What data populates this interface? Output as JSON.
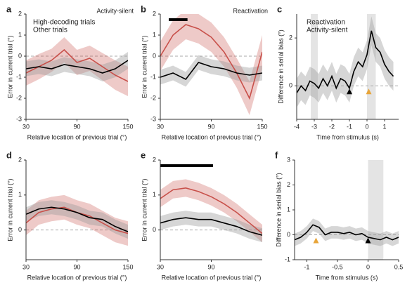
{
  "chart_data": [
    {
      "type": "line",
      "panel": "a",
      "annotation": "Activity-silent",
      "xlabel": "Relative location of previous trial (°)",
      "ylabel": "Error in current trial (°)",
      "xlim": [
        30,
        150
      ],
      "xticks": [
        30,
        90,
        150
      ],
      "ylim": [
        -3,
        2
      ],
      "yticks": [
        -3,
        -2,
        -1,
        0,
        1,
        2
      ],
      "x": [
        30,
        45,
        60,
        75,
        90,
        105,
        120,
        135,
        150
      ],
      "series": [
        {
          "name": "High-decoding trials",
          "color": "#c8504a",
          "values": [
            -0.8,
            -0.5,
            -0.2,
            0.3,
            -0.3,
            -0.1,
            -0.5,
            -0.9,
            -1.2
          ],
          "errors": [
            0.6,
            0.6,
            0.55,
            0.6,
            0.6,
            0.6,
            0.65,
            0.7,
            0.7
          ]
        },
        {
          "name": "Other trials",
          "color": "#000000",
          "values": [
            -0.6,
            -0.5,
            -0.6,
            -0.4,
            -0.5,
            -0.6,
            -0.8,
            -0.6,
            -0.2
          ],
          "errors": [
            0.35,
            0.35,
            0.35,
            0.35,
            0.35,
            0.35,
            0.4,
            0.4,
            0.4
          ]
        }
      ]
    },
    {
      "type": "line",
      "panel": "b",
      "annotation": "Reactivation",
      "xlabel": "Relative location of previous trial (°)",
      "ylabel": "Error in current trial (°)",
      "xlim": [
        30,
        150
      ],
      "xticks": [
        30,
        90,
        150
      ],
      "ylim": [
        -3,
        2
      ],
      "yticks": [
        -3,
        -2,
        -1,
        0,
        1,
        2
      ],
      "x": [
        30,
        45,
        60,
        75,
        90,
        105,
        120,
        135,
        150
      ],
      "significance": [
        40,
        62
      ],
      "series": [
        {
          "color": "#c8504a",
          "values": [
            0.0,
            1.0,
            1.5,
            1.3,
            0.9,
            0.2,
            -0.8,
            -2.0,
            0.2
          ],
          "errors": [
            0.7,
            0.7,
            0.7,
            0.7,
            0.7,
            0.7,
            0.7,
            0.8,
            0.8
          ]
        },
        {
          "color": "#000000",
          "values": [
            -1.0,
            -0.8,
            -1.1,
            -0.3,
            -0.5,
            -0.6,
            -0.8,
            -0.9,
            -0.8
          ],
          "errors": [
            0.35,
            0.35,
            0.35,
            0.35,
            0.35,
            0.35,
            0.35,
            0.35,
            0.35
          ]
        }
      ]
    },
    {
      "type": "line",
      "panel": "c",
      "xlabel": "Time from stimulus (s)",
      "ylabel": "Difference in serial bias (°)",
      "xlim": [
        -4,
        1.8
      ],
      "xticks": [
        -4,
        -3,
        -2,
        -1,
        0,
        1
      ],
      "ylim": [
        -1.4,
        3
      ],
      "yticks": [
        0,
        2
      ],
      "shaded_regions": [
        [
          -3.2,
          -2.8
        ],
        [
          0,
          0.5
        ]
      ],
      "x": [
        -4,
        -3.75,
        -3.5,
        -3.25,
        -3,
        -2.75,
        -2.5,
        -2.25,
        -2,
        -1.75,
        -1.5,
        -1.25,
        -1,
        -0.75,
        -0.5,
        -0.25,
        0,
        0.25,
        0.5,
        0.75,
        1,
        1.25,
        1.5
      ],
      "series": [
        {
          "color": "#000000",
          "values": [
            -0.3,
            0.0,
            -0.2,
            0.2,
            0.1,
            -0.1,
            0.3,
            0.0,
            0.4,
            -0.1,
            0.3,
            0.2,
            -0.1,
            0.6,
            1.0,
            0.8,
            1.3,
            2.3,
            1.6,
            1.4,
            0.9,
            0.6,
            0.4
          ],
          "errors": [
            0.6,
            0.6,
            0.6,
            0.6,
            0.6,
            0.6,
            0.6,
            0.6,
            0.6,
            0.6,
            0.6,
            0.6,
            0.6,
            0.6,
            0.6,
            0.6,
            0.6,
            0.6,
            0.6,
            0.6,
            0.6,
            0.6,
            0.6
          ]
        }
      ],
      "markers": [
        {
          "name": "Reactivation",
          "color": "#e8a53a",
          "x": 0.1
        },
        {
          "name": "Activity-silent",
          "color": "#000000",
          "x": -1.0
        }
      ]
    },
    {
      "type": "line",
      "panel": "d",
      "xlabel": "Relative location of previous trial (°)",
      "ylabel": "Error in current trial (°)",
      "xlim": [
        30,
        150
      ],
      "xticks": [
        30,
        90,
        150
      ],
      "ylim": [
        -0.85,
        2
      ],
      "yticks": [
        0,
        1,
        2
      ],
      "x": [
        30,
        45,
        60,
        75,
        90,
        105,
        120,
        135,
        150
      ],
      "series": [
        {
          "color": "#c8504a",
          "values": [
            0.2,
            0.5,
            0.6,
            0.65,
            0.5,
            0.4,
            0.2,
            0.0,
            -0.1
          ],
          "errors": [
            0.35,
            0.35,
            0.35,
            0.35,
            0.35,
            0.35,
            0.35,
            0.35,
            0.35
          ]
        },
        {
          "color": "#000000",
          "values": [
            0.45,
            0.6,
            0.65,
            0.6,
            0.5,
            0.35,
            0.3,
            0.1,
            -0.05
          ],
          "errors": [
            0.2,
            0.2,
            0.2,
            0.2,
            0.2,
            0.2,
            0.2,
            0.2,
            0.2
          ]
        }
      ]
    },
    {
      "type": "line",
      "panel": "e",
      "xlabel": "Relative location of previous trial (°)",
      "ylabel": "Error in current trial (°)",
      "xlim": [
        30,
        150
      ],
      "xticks": [
        30,
        90
      ],
      "ylim": [
        -0.85,
        2
      ],
      "yticks": [
        0,
        1,
        2
      ],
      "x": [
        30,
        45,
        60,
        75,
        90,
        105,
        120,
        135,
        150
      ],
      "significance": [
        30,
        92
      ],
      "series": [
        {
          "color": "#c8504a",
          "values": [
            0.9,
            1.15,
            1.2,
            1.1,
            0.95,
            0.75,
            0.5,
            0.2,
            -0.1
          ],
          "errors": [
            0.25,
            0.25,
            0.25,
            0.25,
            0.25,
            0.25,
            0.25,
            0.25,
            0.25
          ]
        },
        {
          "color": "#000000",
          "values": [
            0.2,
            0.3,
            0.35,
            0.3,
            0.3,
            0.2,
            0.1,
            -0.05,
            -0.15
          ],
          "errors": [
            0.2,
            0.2,
            0.2,
            0.2,
            0.2,
            0.2,
            0.2,
            0.2,
            0.2
          ]
        }
      ]
    },
    {
      "type": "line",
      "panel": "f",
      "xlabel": "Time from stimulus (s)",
      "ylabel": "Difference in serial bias (°)",
      "xlim": [
        -1.2,
        0.5
      ],
      "xticks": [
        -1,
        -0.5,
        0,
        0.5
      ],
      "ylim": [
        -1,
        3
      ],
      "yticks": [
        -1,
        0,
        1,
        2,
        3
      ],
      "shaded_regions": [
        [
          0,
          0.25
        ]
      ],
      "x": [
        -1.2,
        -1.1,
        -1.0,
        -0.9,
        -0.8,
        -0.7,
        -0.6,
        -0.5,
        -0.4,
        -0.3,
        -0.2,
        -0.1,
        0,
        0.1,
        0.2,
        0.3,
        0.4,
        0.5
      ],
      "series": [
        {
          "color": "#000000",
          "values": [
            -0.2,
            -0.1,
            0.1,
            0.4,
            0.3,
            0.0,
            0.1,
            0.1,
            0.05,
            0.1,
            0.0,
            0.05,
            -0.1,
            -0.15,
            -0.2,
            -0.1,
            -0.2,
            -0.1
          ],
          "errors": [
            0.25,
            0.25,
            0.25,
            0.25,
            0.25,
            0.25,
            0.25,
            0.25,
            0.25,
            0.25,
            0.25,
            0.25,
            0.25,
            0.25,
            0.25,
            0.25,
            0.25,
            0.25
          ]
        }
      ],
      "markers": [
        {
          "color": "#e8a53a",
          "x": -0.85
        },
        {
          "color": "#000000",
          "x": 0.0
        }
      ]
    }
  ]
}
